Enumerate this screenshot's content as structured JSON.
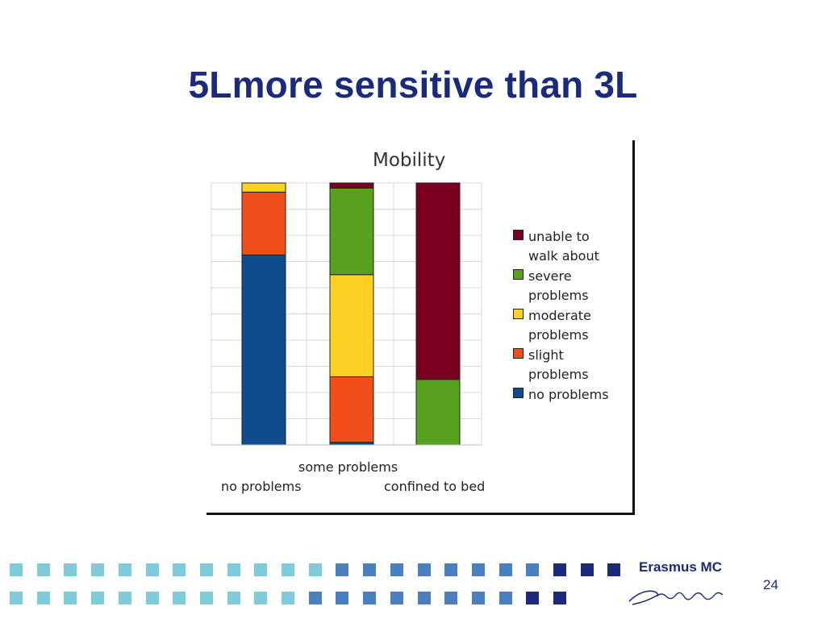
{
  "slide": {
    "title": "5Lmore sensitive than 3L",
    "page_number": "24",
    "logo": {
      "name": "Erasmus MC",
      "signature": "Erasmus"
    }
  },
  "colors": {
    "title": "#1b2a7a",
    "footer_light": "#7ecbdc",
    "footer_mid": "#4a7fc0",
    "footer_dark": "#1b2a7a"
  },
  "chart_data": {
    "type": "bar",
    "stacked": true,
    "title": "Mobility",
    "categories": [
      "no problems",
      "some problems",
      "confined to bed"
    ],
    "grid": true,
    "legend_position": "right",
    "series": [
      {
        "name": "no problems",
        "color": "#0f4c8c",
        "values": [
          72.5,
          1,
          0
        ]
      },
      {
        "name": "slight\nproblems",
        "color": "#f24e1a",
        "values": [
          24,
          25,
          0
        ]
      },
      {
        "name": "moderate\nproblems",
        "color": "#fdd023",
        "values": [
          3.5,
          39,
          0
        ]
      },
      {
        "name": "severe\nproblems",
        "color": "#58a11f",
        "values": [
          0,
          33,
          25
        ]
      },
      {
        "name": "unable to\nwalk about",
        "color": "#7a0020",
        "values": [
          0,
          2,
          75
        ]
      }
    ],
    "legend_order": [
      {
        "name": "unable to\nwalk about",
        "color": "#7a0020"
      },
      {
        "name": "severe\nproblems",
        "color": "#58a11f"
      },
      {
        "name": "moderate\nproblems",
        "color": "#fdd023"
      },
      {
        "name": "slight\nproblems",
        "color": "#f24e1a"
      },
      {
        "name": "no problems",
        "color": "#0f4c8c"
      }
    ]
  }
}
